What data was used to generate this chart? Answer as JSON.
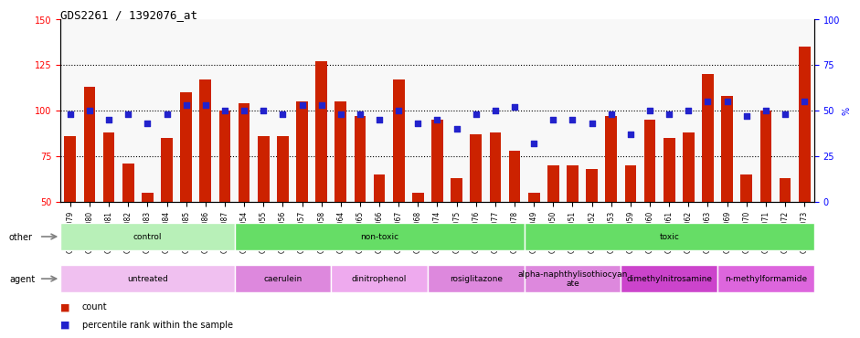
{
  "title": "GDS2261 / 1392076_at",
  "samples": [
    "GSM127079",
    "GSM127080",
    "GSM127081",
    "GSM127082",
    "GSM127083",
    "GSM127084",
    "GSM127085",
    "GSM127086",
    "GSM127087",
    "GSM127054",
    "GSM127055",
    "GSM127056",
    "GSM127057",
    "GSM127058",
    "GSM127064",
    "GSM127065",
    "GSM127066",
    "GSM127067",
    "GSM127068",
    "GSM127074",
    "GSM127075",
    "GSM127076",
    "GSM127077",
    "GSM127078",
    "GSM127049",
    "GSM127050",
    "GSM127051",
    "GSM127052",
    "GSM127053",
    "GSM127059",
    "GSM127060",
    "GSM127061",
    "GSM127062",
    "GSM127063",
    "GSM127069",
    "GSM127070",
    "GSM127071",
    "GSM127072",
    "GSM127073"
  ],
  "counts": [
    86,
    113,
    88,
    71,
    55,
    85,
    110,
    117,
    100,
    104,
    86,
    86,
    105,
    127,
    105,
    97,
    65,
    117,
    55,
    95,
    63,
    87,
    88,
    78,
    55,
    70,
    70,
    68,
    97,
    70,
    95,
    85,
    88,
    120,
    108,
    65,
    100,
    63,
    135
  ],
  "percentile_ranks": [
    48,
    50,
    45,
    48,
    43,
    48,
    53,
    53,
    50,
    50,
    50,
    48,
    53,
    53,
    48,
    48,
    45,
    50,
    43,
    45,
    40,
    48,
    50,
    52,
    32,
    45,
    45,
    43,
    48,
    37,
    50,
    48,
    50,
    55,
    55,
    47,
    50,
    48,
    55
  ],
  "bar_color": "#cc2200",
  "dot_color": "#2222cc",
  "ylim_left": [
    50,
    150
  ],
  "ylim_right": [
    0,
    100
  ],
  "yticks_left": [
    50,
    75,
    100,
    125,
    150
  ],
  "yticks_right": [
    0,
    25,
    50,
    75,
    100
  ],
  "hlines": [
    75,
    100,
    125
  ],
  "group_other": [
    {
      "label": "control",
      "start": 0,
      "end": 9,
      "color": "#99ee99"
    },
    {
      "label": "non-toxic",
      "start": 9,
      "end": 24,
      "color": "#55dd55"
    },
    {
      "label": "toxic",
      "start": 24,
      "end": 39,
      "color": "#55dd55"
    }
  ],
  "group_agent": [
    {
      "label": "untreated",
      "start": 0,
      "end": 9,
      "color": "#ffccff"
    },
    {
      "label": "caerulein",
      "start": 9,
      "end": 14,
      "color": "#ff88ff"
    },
    {
      "label": "dinitrophenol",
      "start": 14,
      "end": 19,
      "color": "#ffaaff"
    },
    {
      "label": "rosiglitazone",
      "start": 19,
      "end": 24,
      "color": "#ff88ff"
    },
    {
      "label": "alpha-naphthylisothiocyan\nate",
      "start": 24,
      "end": 29,
      "color": "#ff88ff"
    },
    {
      "label": "dimethylnitrosamine",
      "start": 29,
      "end": 34,
      "color": "#ff44ff"
    },
    {
      "label": "n-methylformamide",
      "start": 34,
      "end": 39,
      "color": "#ee66ee"
    }
  ],
  "background_color": "#f0f0f0",
  "legend_count_color": "#cc2200",
  "legend_dot_color": "#2222cc"
}
